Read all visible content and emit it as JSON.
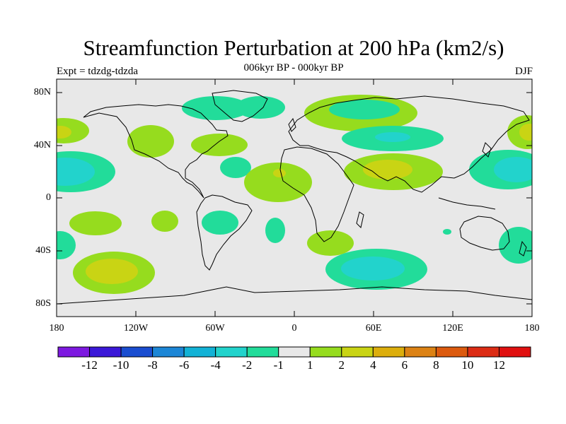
{
  "title": "Streamfunction Perturbation at 200 hPa (km2/s)",
  "subtitle": "006kyr BP - 000kyr BP",
  "expt_label": "Expt = tdzdg-tdzda",
  "season": "DJF",
  "y_axis_labels": [
    "80N",
    "40N",
    "0",
    "40S",
    "80S"
  ],
  "x_axis_labels": [
    "180",
    "120W",
    "60W",
    "0",
    "60E",
    "120E",
    "180"
  ],
  "colorbar": {
    "labels": [
      "-12",
      "-10",
      "-8",
      "-6",
      "-4",
      "-2",
      "-1",
      "1",
      "2",
      "4",
      "6",
      "8",
      "10",
      "12"
    ],
    "colors": [
      "#7d19e0",
      "#3b18d8",
      "#1a4dd0",
      "#1c86d6",
      "#12b2d6",
      "#22d3cc",
      "#22dc9a",
      "#e8e8e8",
      "#96dc1e",
      "#c9d414",
      "#dcae0c",
      "#dc8214",
      "#dc5a0e",
      "#dc2c14",
      "#e01010"
    ]
  },
  "colors": {
    "background_field": "#e8e8e8",
    "level_neg1": "#22dc9a",
    "level_neg2": "#22d3cc",
    "level_pos1": "#96dc1e",
    "level_pos2": "#c9d414",
    "level_pos4": "#dcae0c"
  }
}
